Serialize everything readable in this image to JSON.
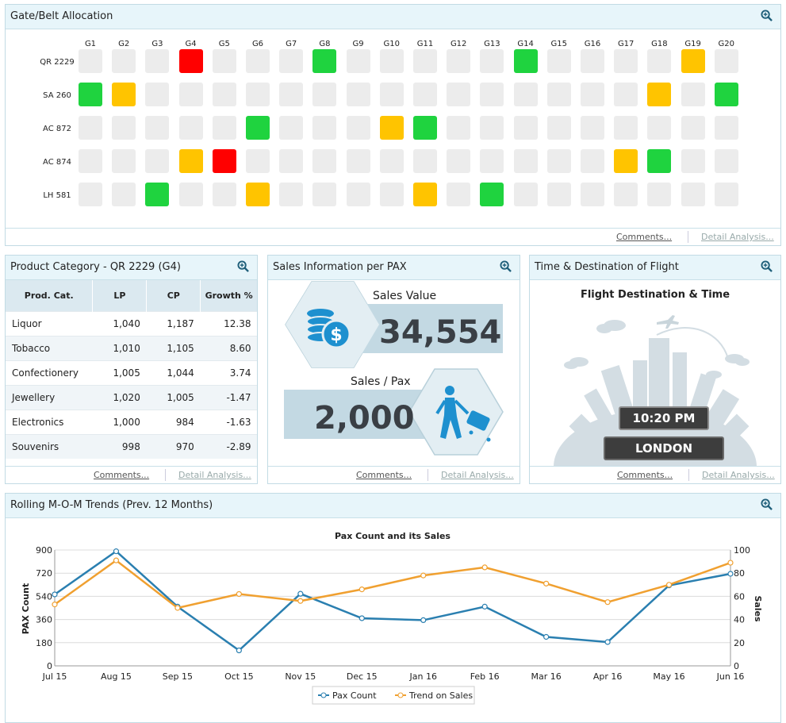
{
  "gate_panel": {
    "title": "Gate/Belt Allocation",
    "gates": [
      "G1",
      "G2",
      "G3",
      "G4",
      "G5",
      "G6",
      "G7",
      "G8",
      "G9",
      "G10",
      "G11",
      "G12",
      "G13",
      "G14",
      "G15",
      "G16",
      "G17",
      "G18",
      "G19",
      "G20"
    ],
    "flights": [
      {
        "name": "QR 2229",
        "status": {
          "G4": "red",
          "G8": "green",
          "G14": "green",
          "G19": "yellow"
        }
      },
      {
        "name": "SA 260",
        "status": {
          "G1": "green",
          "G2": "yellow",
          "G18": "yellow",
          "G20": "green"
        }
      },
      {
        "name": "AC 872",
        "status": {
          "G6": "green",
          "G10": "yellow",
          "G11": "green"
        }
      },
      {
        "name": "AC 874",
        "status": {
          "G4": "yellow",
          "G5": "red",
          "G17": "yellow",
          "G18": "green"
        }
      },
      {
        "name": "LH 581",
        "status": {
          "G3": "green",
          "G6": "yellow",
          "G11": "yellow",
          "G13": "green"
        }
      }
    ],
    "colors": {
      "green": "#1fd33f",
      "yellow": "#ffc400",
      "red": "#ff0000",
      "empty": "#ececec"
    },
    "comments": "Comments...",
    "detail": "Detail Analysis..."
  },
  "product_panel": {
    "title": "Product Category - QR 2229 (G4)",
    "headers": [
      "Prod. Cat.",
      "LP",
      "CP",
      "Growth %"
    ],
    "rows": [
      [
        "Liquor",
        "1,040",
        "1,187",
        "12.38"
      ],
      [
        "Tobacco",
        "1,010",
        "1,105",
        "8.60"
      ],
      [
        "Confectionery",
        "1,005",
        "1,044",
        "3.74"
      ],
      [
        "Jewellery",
        "1,020",
        "1,005",
        "-1.47"
      ],
      [
        "Electronics",
        "1,000",
        "984",
        "-1.63"
      ],
      [
        "Souvenirs",
        "998",
        "970",
        "-2.89"
      ]
    ],
    "comments": "Comments...",
    "detail": "Detail Analysis..."
  },
  "sales_panel": {
    "title": "Sales Information per PAX",
    "sales_value_label": "Sales Value",
    "sales_value": "34,554",
    "sales_pax_label": "Sales / Pax",
    "sales_pax": "2,000",
    "comments": "Comments...",
    "detail": "Detail Analysis..."
  },
  "flight_panel": {
    "title": "Time & Destination of Flight",
    "heading": "Flight Destination & Time",
    "time": "10:20 PM",
    "destination": "LONDON",
    "comments": "Comments...",
    "detail": "Detail Analysis..."
  },
  "trend_panel": {
    "title": "Rolling M-O-M Trends (Prev. 12 Months)"
  },
  "chart_data": {
    "type": "line",
    "title": "Pax Count and its Sales",
    "categories": [
      "Jul 15",
      "Aug 15",
      "Sep 15",
      "Oct 15",
      "Nov 15",
      "Dec 15",
      "Jan 16",
      "Feb 16",
      "Mar 16",
      "Apr 16",
      "May 16",
      "Jun 16"
    ],
    "ylabel": "PAX Count",
    "y2label": "Sales",
    "ylim": [
      0,
      900
    ],
    "y2lim": [
      0,
      100
    ],
    "yticks": [
      0,
      180,
      360,
      540,
      720,
      900
    ],
    "y2ticks": [
      0,
      20,
      40,
      60,
      80,
      100
    ],
    "grid": true,
    "legend": "bottom",
    "series": [
      {
        "name": "Pax Count",
        "axis": "left",
        "color": "#2a7fb0",
        "values": [
          555,
          890,
          460,
          120,
          560,
          370,
          355,
          460,
          225,
          185,
          625,
          715
        ]
      },
      {
        "name": "Trend on Sales",
        "axis": "right",
        "color": "#f0a030",
        "values": [
          53,
          91,
          50,
          62,
          56,
          66,
          78,
          85,
          71,
          55,
          70,
          89
        ]
      }
    ]
  }
}
